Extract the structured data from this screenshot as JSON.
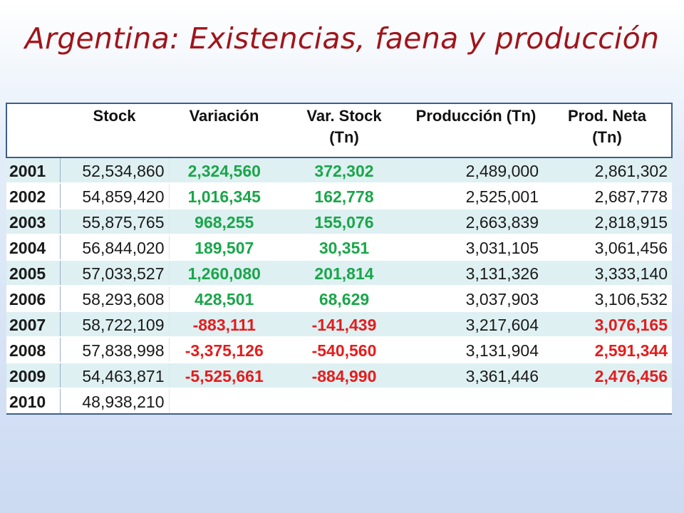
{
  "title": "Argentina: Existencias, faena y producción",
  "table": {
    "headers": {
      "year": "",
      "stock": "Stock",
      "variacion": "Variación",
      "var_stock_l1": "Var. Stock",
      "var_stock_l2": "(Tn)",
      "produccion": "Producción (Tn)",
      "prod_neta_l1": "Prod. Neta",
      "prod_neta_l2": "(Tn)"
    },
    "rows": [
      {
        "year": "2001",
        "stock": "52,534,860",
        "variacion": "2,324,560",
        "var_stock": "372,302",
        "produccion": "2,489,000",
        "prod_neta": "2,861,302"
      },
      {
        "year": "2002",
        "stock": "54,859,420",
        "variacion": "1,016,345",
        "var_stock": "162,778",
        "produccion": "2,525,001",
        "prod_neta": "2,687,778"
      },
      {
        "year": "2003",
        "stock": "55,875,765",
        "variacion": "968,255",
        "var_stock": "155,076",
        "produccion": "2,663,839",
        "prod_neta": "2,818,915"
      },
      {
        "year": "2004",
        "stock": "56,844,020",
        "variacion": "189,507",
        "var_stock": "30,351",
        "produccion": "3,031,105",
        "prod_neta": "3,061,456"
      },
      {
        "year": "2005",
        "stock": "57,033,527",
        "variacion": "1,260,080",
        "var_stock": "201,814",
        "produccion": "3,131,326",
        "prod_neta": "3,333,140"
      },
      {
        "year": "2006",
        "stock": "58,293,608",
        "variacion": "428,501",
        "var_stock": "68,629",
        "produccion": "3,037,903",
        "prod_neta": "3,106,532"
      },
      {
        "year": "2007",
        "stock": "58,722,109",
        "variacion": "-883,111",
        "var_stock": "-141,439",
        "produccion": "3,217,604",
        "prod_neta": "3,076,165"
      },
      {
        "year": "2008",
        "stock": "57,838,998",
        "variacion": "-3,375,126",
        "var_stock": "-540,560",
        "produccion": "3,131,904",
        "prod_neta": "2,591,344"
      },
      {
        "year": "2009",
        "stock": "54,463,871",
        "variacion": "-5,525,661",
        "var_stock": "-884,990",
        "produccion": "3,361,446",
        "prod_neta": "2,476,456"
      },
      {
        "year": "2010",
        "stock": "48,938,210",
        "variacion": "",
        "var_stock": "",
        "produccion": "",
        "prod_neta": ""
      }
    ]
  },
  "colors": {
    "title": "#a0151b",
    "positive": "#1aa64a",
    "negative": "#e31d1d"
  }
}
